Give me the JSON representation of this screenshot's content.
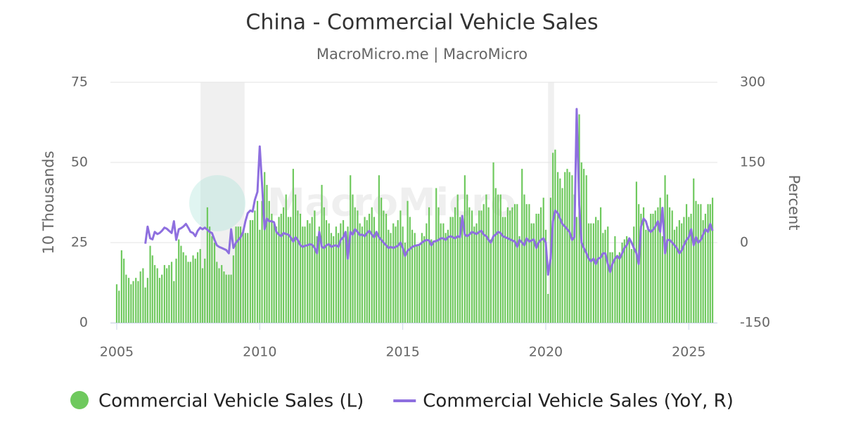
{
  "chart_data": {
    "type": "combo",
    "title": "China - Commercial Vehicle Sales",
    "subtitle": "MacroMicro.me | MacroMicro",
    "watermark": "MacroMicro",
    "y_label": "10 Thousands",
    "y2_label": "Percent",
    "xlim": [
      2004.78,
      2026.0
    ],
    "xticks": [
      2005,
      2010,
      2015,
      2020,
      2025
    ],
    "ylim": [
      0,
      75
    ],
    "yticks": [
      0,
      25,
      50,
      75
    ],
    "y2lim": [
      -150,
      300
    ],
    "y2ticks": [
      -150,
      0,
      150,
      300
    ],
    "grid": true,
    "bands": [
      [
        2007.93,
        2009.47
      ],
      [
        2020.08,
        2020.29
      ]
    ],
    "x": [
      2005,
      2005.08,
      2005.17,
      2005.25,
      2005.33,
      2005.42,
      2005.5,
      2005.58,
      2005.67,
      2005.75,
      2005.83,
      2005.92,
      2006,
      2006.08,
      2006.17,
      2006.25,
      2006.33,
      2006.42,
      2006.5,
      2006.58,
      2006.67,
      2006.75,
      2006.83,
      2006.92,
      2007,
      2007.08,
      2007.17,
      2007.25,
      2007.33,
      2007.42,
      2007.5,
      2007.58,
      2007.67,
      2007.75,
      2007.83,
      2007.92,
      2008,
      2008.08,
      2008.17,
      2008.25,
      2008.33,
      2008.42,
      2008.5,
      2008.58,
      2008.67,
      2008.75,
      2008.83,
      2008.92,
      2009,
      2009.08,
      2009.17,
      2009.25,
      2009.33,
      2009.42,
      2009.5,
      2009.58,
      2009.67,
      2009.75,
      2009.83,
      2009.92,
      2010,
      2010.08,
      2010.17,
      2010.25,
      2010.33,
      2010.42,
      2010.5,
      2010.58,
      2010.67,
      2010.75,
      2010.83,
      2010.92,
      2011,
      2011.08,
      2011.17,
      2011.25,
      2011.33,
      2011.42,
      2011.5,
      2011.58,
      2011.67,
      2011.75,
      2011.83,
      2011.92,
      2012,
      2012.08,
      2012.17,
      2012.25,
      2012.33,
      2012.42,
      2012.5,
      2012.58,
      2012.67,
      2012.75,
      2012.83,
      2012.92,
      2013,
      2013.08,
      2013.17,
      2013.25,
      2013.33,
      2013.42,
      2013.5,
      2013.58,
      2013.67,
      2013.75,
      2013.83,
      2013.92,
      2014,
      2014.08,
      2014.17,
      2014.25,
      2014.33,
      2014.42,
      2014.5,
      2014.58,
      2014.67,
      2014.75,
      2014.83,
      2014.92,
      2015,
      2015.08,
      2015.17,
      2015.25,
      2015.33,
      2015.42,
      2015.5,
      2015.58,
      2015.67,
      2015.75,
      2015.83,
      2015.92,
      2016,
      2016.08,
      2016.17,
      2016.25,
      2016.33,
      2016.42,
      2016.5,
      2016.58,
      2016.67,
      2016.75,
      2016.83,
      2016.92,
      2017,
      2017.08,
      2017.17,
      2017.25,
      2017.33,
      2017.42,
      2017.5,
      2017.58,
      2017.67,
      2017.75,
      2017.83,
      2017.92,
      2018,
      2018.08,
      2018.17,
      2018.25,
      2018.33,
      2018.42,
      2018.5,
      2018.58,
      2018.67,
      2018.75,
      2018.83,
      2018.92,
      2019,
      2019.08,
      2019.17,
      2019.25,
      2019.33,
      2019.42,
      2019.5,
      2019.58,
      2019.67,
      2019.75,
      2019.83,
      2019.92,
      2020,
      2020.08,
      2020.17,
      2020.25,
      2020.33,
      2020.42,
      2020.5,
      2020.58,
      2020.67,
      2020.75,
      2020.83,
      2020.92,
      2021,
      2021.08,
      2021.17,
      2021.25,
      2021.33,
      2021.42,
      2021.5,
      2021.58,
      2021.67,
      2021.75,
      2021.83,
      2021.92,
      2022,
      2022.08,
      2022.17,
      2022.25,
      2022.33,
      2022.42,
      2022.5,
      2022.58,
      2022.67,
      2022.75,
      2022.83,
      2022.92,
      2023,
      2023.08,
      2023.17,
      2023.25,
      2023.33,
      2023.42,
      2023.5,
      2023.58,
      2023.67,
      2023.75,
      2023.83,
      2023.92,
      2024,
      2024.08,
      2024.17,
      2024.25,
      2024.33,
      2024.42,
      2024.5,
      2024.58,
      2024.67,
      2024.75,
      2024.83,
      2024.92,
      2025,
      2025.08,
      2025.17,
      2025.25,
      2025.33,
      2025.42,
      2025.5,
      2025.58,
      2025.67,
      2025.75,
      2025.83
    ],
    "series": [
      {
        "name": "Commercial Vehicle Sales (L)",
        "type": "bar",
        "color": "#6fc95e",
        "values": [
          12,
          10,
          22.6,
          20,
          15,
          14,
          12,
          13,
          14,
          13,
          16,
          17,
          11,
          14,
          24,
          21,
          18,
          17,
          14,
          15,
          18,
          17,
          18,
          19,
          13,
          20,
          26,
          24,
          22,
          21,
          19,
          19,
          21,
          20,
          22,
          23,
          17,
          20,
          36,
          30,
          27,
          25,
          19,
          17,
          18,
          16,
          15,
          15,
          15,
          21,
          30,
          30,
          30,
          29,
          28,
          28,
          32,
          32,
          35,
          38,
          29,
          38,
          47,
          43,
          38,
          34,
          31,
          30,
          33,
          34,
          36,
          40,
          33,
          33,
          48,
          40,
          35,
          34,
          30,
          30,
          32,
          31,
          33,
          35,
          27,
          30,
          43,
          36,
          32,
          31,
          28,
          27,
          30,
          28,
          31,
          32,
          27,
          30,
          46,
          40,
          36,
          35,
          31,
          30,
          33,
          32,
          34,
          36,
          33,
          28,
          46,
          39,
          35,
          34,
          29,
          28,
          31,
          30,
          32,
          35,
          30,
          25,
          38,
          33,
          29,
          28,
          24,
          24,
          28,
          27,
          31,
          36,
          26,
          25,
          42,
          36,
          31,
          31,
          28,
          29,
          33,
          33,
          36,
          40,
          33,
          31,
          46,
          40,
          36,
          35,
          30,
          31,
          35,
          35,
          37,
          40,
          36,
          26,
          50,
          42,
          40,
          40,
          33,
          33,
          36,
          35,
          36,
          37,
          37,
          27,
          48,
          40,
          37,
          37,
          31,
          31,
          34,
          34,
          36,
          39,
          29,
          9,
          39,
          53,
          54,
          47,
          45,
          42,
          47,
          48,
          47,
          46,
          40,
          33,
          65,
          50,
          48,
          46,
          31,
          31,
          31,
          33,
          32,
          36,
          28,
          29,
          30,
          22,
          22,
          27,
          21,
          22,
          25,
          26,
          27,
          26,
          23,
          30,
          44,
          37,
          34,
          36,
          29,
          30,
          34,
          34,
          35,
          36,
          39,
          27,
          46,
          40,
          36,
          35,
          29,
          30,
          32,
          31,
          33,
          37,
          33,
          34,
          45,
          38,
          37,
          37,
          32,
          34,
          37,
          37,
          39
        ]
      },
      {
        "name": "Commercial Vehicle Sales (YoY, R)",
        "type": "line",
        "axis": "y2",
        "color": "#8e6fdf",
        "values": [
          null,
          null,
          null,
          null,
          null,
          null,
          null,
          null,
          null,
          null,
          null,
          null,
          -2,
          30,
          8,
          6,
          20,
          16,
          18,
          22,
          28,
          26,
          22,
          18,
          40,
          5,
          25,
          27,
          30,
          35,
          28,
          20,
          18,
          12,
          22,
          28,
          25,
          28,
          24,
          20,
          18,
          5,
          -5,
          -8,
          -10,
          -12,
          -14,
          -20,
          25,
          -10,
          0,
          5,
          10,
          20,
          40,
          55,
          60,
          58,
          80,
          95,
          180,
          110,
          25,
          45,
          40,
          40,
          38,
          20,
          15,
          12,
          18,
          16,
          15,
          10,
          2,
          10,
          5,
          -5,
          -8,
          -6,
          -5,
          -3,
          -4,
          -10,
          -20,
          20,
          -8,
          -10,
          -5,
          -3,
          -8,
          -6,
          -5,
          -8,
          5,
          10,
          20,
          -30,
          20,
          15,
          25,
          20,
          14,
          15,
          12,
          18,
          22,
          15,
          10,
          20,
          10,
          5,
          0,
          -5,
          -10,
          -8,
          -10,
          -8,
          -6,
          0,
          -10,
          -25,
          -15,
          -12,
          -8,
          -6,
          -5,
          -4,
          0,
          3,
          5,
          4,
          -5,
          2,
          3,
          5,
          8,
          8,
          5,
          10,
          12,
          10,
          8,
          12,
          10,
          50,
          15,
          12,
          15,
          20,
          18,
          16,
          20,
          22,
          15,
          12,
          5,
          0,
          12,
          15,
          20,
          18,
          12,
          10,
          8,
          6,
          4,
          2,
          -8,
          5,
          0,
          -5,
          8,
          2,
          4,
          6,
          -10,
          0,
          5,
          8,
          0,
          -60,
          -30,
          40,
          60,
          55,
          45,
          35,
          30,
          25,
          20,
          5,
          10,
          250,
          70,
          0,
          -10,
          -20,
          -30,
          -35,
          -30,
          -40,
          -30,
          -28,
          -20,
          -20,
          -40,
          -55,
          -40,
          -30,
          -25,
          -30,
          -20,
          -10,
          -5,
          8,
          0,
          -10,
          -20,
          -40,
          30,
          45,
          40,
          25,
          20,
          24,
          30,
          40,
          20,
          65,
          -20,
          5,
          5,
          0,
          -5,
          -10,
          -20,
          -15,
          -5,
          5,
          10,
          25,
          -5,
          10,
          0,
          5,
          15,
          25,
          20,
          35,
          22
        ]
      }
    ]
  }
}
